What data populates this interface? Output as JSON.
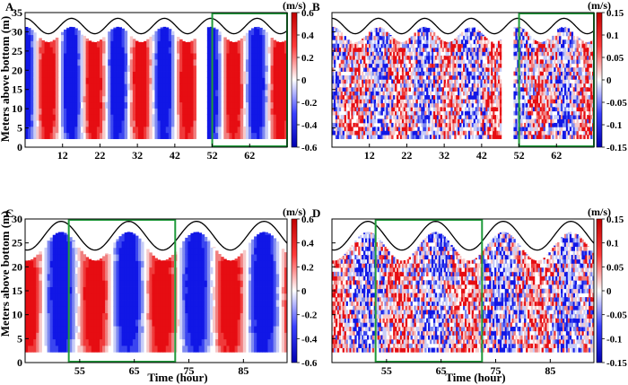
{
  "figure": {
    "ylabel": "Meters above bottom (m)",
    "xlabel": "Time (hour)"
  },
  "colors": {
    "positive": "#e8141c",
    "negative": "#1a21e6",
    "neutral": "#ffffff",
    "highlight_box": "#1f9a3a",
    "surface_line": "#000000"
  },
  "chart_data": [
    {
      "panel": "A",
      "type": "heatmap",
      "variable": "velocity",
      "unit_label": "(m/s)",
      "colorbar_ticks": [
        "0.6",
        "0.4",
        "0.2",
        "0",
        "-0.2",
        "-0.4",
        "-0.6"
      ],
      "colorbar_range": [
        -0.6,
        0.6
      ],
      "xlim": [
        2,
        72
      ],
      "ylim": [
        0,
        35
      ],
      "xticks": [
        12,
        22,
        32,
        42,
        52,
        62
      ],
      "xtick_labels": [
        "12",
        "22",
        "32",
        "42",
        "52",
        "62"
      ],
      "yticks": [
        0,
        5,
        10,
        15,
        20,
        25,
        30,
        35
      ],
      "ytick_labels": [
        "0",
        "5",
        "10",
        "15",
        "20",
        "25",
        "30",
        "35"
      ],
      "data_gap_hours": [
        47.5,
        50.5
      ],
      "tidal_period_hours": 12.4,
      "surface_mean_m": 31.5,
      "surface_amplitude_m": 2.0,
      "highlight_hours": [
        52,
        72
      ]
    },
    {
      "panel": "B",
      "type": "heatmap",
      "variable": "velocity",
      "unit_label": "(m/s)",
      "colorbar_ticks": [
        "0.15",
        "0.1",
        "0.05",
        "0",
        "-0.05",
        "-0.1",
        "-0.15"
      ],
      "colorbar_range": [
        -0.15,
        0.15
      ],
      "xlim": [
        2,
        72
      ],
      "ylim": [
        0,
        35
      ],
      "xticks": [
        12,
        22,
        32,
        42,
        52,
        62
      ],
      "xtick_labels": [
        "12",
        "22",
        "32",
        "42",
        "52",
        "62"
      ],
      "yticks": [
        0,
        5,
        10,
        15,
        20,
        25,
        30,
        35
      ],
      "ytick_labels": [
        "",
        "",
        "",
        "",
        "",
        "",
        "",
        ""
      ],
      "data_gap_hours": [
        47.5,
        50.5
      ],
      "tidal_period_hours": 12.4,
      "surface_mean_m": 31.5,
      "surface_amplitude_m": 2.0,
      "highlight_hours": [
        52,
        72
      ]
    },
    {
      "panel": "C",
      "type": "heatmap",
      "variable": "velocity",
      "unit_label": "(m/s)",
      "colorbar_ticks": [
        "0.6",
        "0.4",
        "0.2",
        "0",
        "-0.2",
        "-0.4",
        "-0.6"
      ],
      "colorbar_range": [
        -0.6,
        0.6
      ],
      "xlim": [
        45,
        93
      ],
      "ylim": [
        0,
        30
      ],
      "xticks": [
        55,
        65,
        75,
        85
      ],
      "xtick_labels": [
        "55",
        "65",
        "75",
        "85"
      ],
      "yticks": [
        0,
        5,
        10,
        15,
        20,
        25,
        30
      ],
      "ytick_labels": [
        "0",
        "5",
        "10",
        "15",
        "20",
        "25",
        "30"
      ],
      "tidal_period_hours": 12.4,
      "surface_mean_m": 26.5,
      "surface_amplitude_m": 3.0,
      "highlight_hours": [
        53,
        72.5
      ]
    },
    {
      "panel": "D",
      "type": "heatmap",
      "variable": "velocity",
      "unit_label": "(m/s)",
      "colorbar_ticks": [
        "0.15",
        "0.1",
        "0.05",
        "0",
        "-0.05",
        "-0.1",
        "-0.15"
      ],
      "colorbar_range": [
        -0.15,
        0.15
      ],
      "xlim": [
        45,
        93
      ],
      "ylim": [
        0,
        30
      ],
      "xticks": [
        55,
        65,
        75,
        85
      ],
      "xtick_labels": [
        "55",
        "65",
        "75",
        "85"
      ],
      "yticks": [
        0,
        5,
        10,
        15,
        20,
        25,
        30
      ],
      "ytick_labels": [
        "",
        "",
        "",
        "",
        "",
        "",
        ""
      ],
      "tidal_period_hours": 12.4,
      "surface_mean_m": 26.5,
      "surface_amplitude_m": 3.0,
      "highlight_hours": [
        53,
        72.5
      ]
    }
  ]
}
